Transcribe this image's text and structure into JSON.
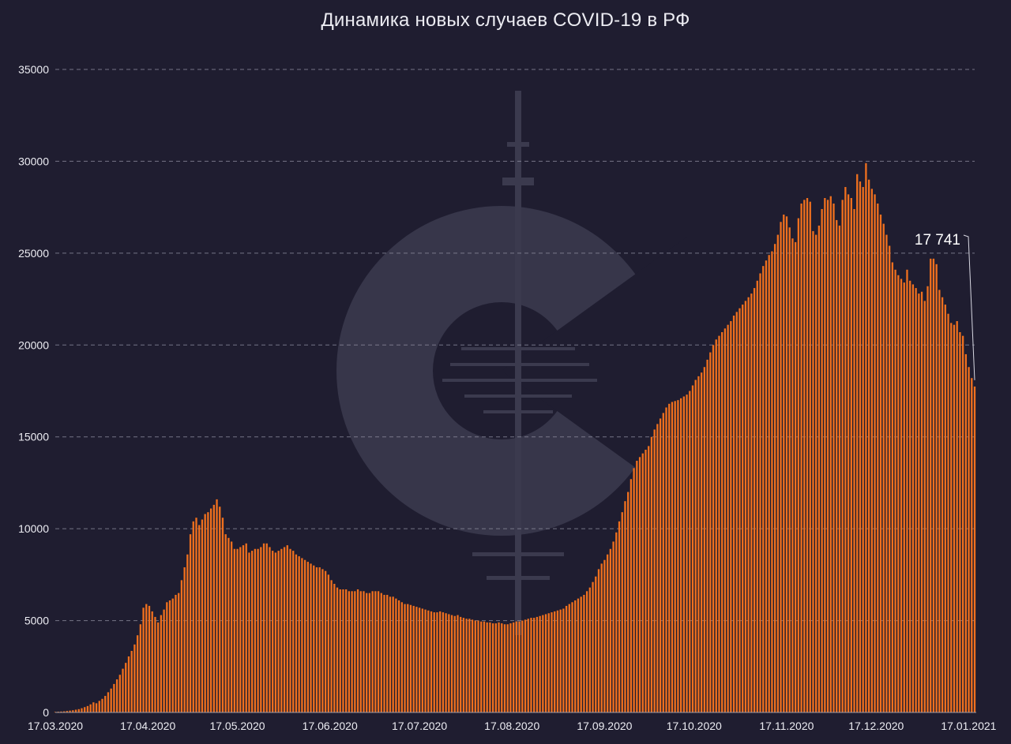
{
  "chart_data": {
    "type": "bar",
    "title": "Динамика новых случаев COVID-19 в РФ",
    "xlabel": "",
    "ylabel": "",
    "x_start": "17.03.2020",
    "x_end": "19.01.2021",
    "xticks": [
      "17.03.2020",
      "17.04.2020",
      "17.05.2020",
      "17.06.2020",
      "17.07.2020",
      "17.08.2020",
      "17.09.2020",
      "17.10.2020",
      "17.11.2020",
      "17.12.2020",
      "17.01.2021"
    ],
    "ylim": [
      0,
      35000
    ],
    "yticks": [
      0,
      5000,
      10000,
      15000,
      20000,
      25000,
      30000,
      35000
    ],
    "grid": "horizontal dashed",
    "bar_color": "#f0701e",
    "values": [
      30,
      40,
      50,
      60,
      80,
      100,
      120,
      150,
      180,
      230,
      290,
      350,
      440,
      550,
      500,
      630,
      740,
      900,
      1100,
      1300,
      1550,
      1800,
      2050,
      2380,
      2700,
      3050,
      3350,
      3700,
      4200,
      4800,
      5700,
      5900,
      5800,
      5500,
      5200,
      4900,
      5300,
      5600,
      6000,
      6100,
      6200,
      6400,
      6500,
      7200,
      7900,
      8600,
      9700,
      10400,
      10600,
      10200,
      10500,
      10800,
      10900,
      11100,
      11300,
      11600,
      11200,
      10600,
      9700,
      9500,
      9300,
      8900,
      8900,
      9000,
      9100,
      9200,
      8700,
      8800,
      8900,
      8900,
      9000,
      9200,
      9200,
      9000,
      8800,
      8700,
      8800,
      8900,
      9000,
      9100,
      8900,
      8800,
      8600,
      8500,
      8400,
      8300,
      8200,
      8100,
      8000,
      7900,
      7900,
      7800,
      7700,
      7500,
      7200,
      7000,
      6800,
      6700,
      6700,
      6700,
      6600,
      6600,
      6600,
      6700,
      6600,
      6600,
      6500,
      6500,
      6600,
      6600,
      6600,
      6500,
      6400,
      6400,
      6300,
      6300,
      6200,
      6100,
      6000,
      5900,
      5900,
      5850,
      5800,
      5750,
      5700,
      5650,
      5600,
      5550,
      5500,
      5450,
      5450,
      5500,
      5450,
      5400,
      5350,
      5300,
      5250,
      5300,
      5200,
      5150,
      5100,
      5100,
      5050,
      5000,
      5000,
      4950,
      4950,
      4900,
      4900,
      4850,
      4850,
      4900,
      4850,
      4800,
      4800,
      4850,
      4900,
      4950,
      4950,
      5000,
      5050,
      5100,
      5150,
      5150,
      5200,
      5250,
      5300,
      5350,
      5400,
      5450,
      5500,
      5550,
      5600,
      5650,
      5800,
      5900,
      6000,
      6100,
      6200,
      6300,
      6400,
      6600,
      6800,
      7100,
      7400,
      7800,
      8100,
      8300,
      8600,
      8900,
      9300,
      9800,
      10400,
      10900,
      11500,
      12000,
      12700,
      13300,
      13700,
      13900,
      14100,
      14300,
      14500,
      15000,
      15400,
      15700,
      16000,
      16300,
      16600,
      16800,
      16900,
      16950,
      17000,
      17100,
      17200,
      17300,
      17500,
      17800,
      18100,
      18300,
      18500,
      18800,
      19200,
      19600,
      20000,
      20300,
      20500,
      20700,
      20900,
      21100,
      21300,
      21600,
      21800,
      22000,
      22200,
      22400,
      22600,
      22800,
      23100,
      23500,
      23900,
      24300,
      24600,
      24900,
      25100,
      25500,
      26000,
      26700,
      27100,
      27000,
      26400,
      25800,
      25600,
      26900,
      27700,
      27900,
      28000,
      27800,
      26200,
      26000,
      26500,
      27400,
      28000,
      27900,
      28100,
      27700,
      26800,
      26500,
      27900,
      28600,
      28200,
      28000,
      27400,
      29300,
      28900,
      28600,
      29900,
      29000,
      28500,
      28200,
      27700,
      27100,
      26600,
      26000,
      25400,
      24500,
      24100,
      23800,
      23600,
      23400,
      24100,
      23500,
      23300,
      23100,
      22800,
      22900,
      22400,
      23200,
      24700,
      24700,
      24400,
      23000,
      22600,
      22200,
      21700,
      21200,
      21100,
      21300,
      20700,
      20500,
      19500,
      18800,
      18200,
      17741
    ],
    "annotations": [
      {
        "label": "17 741",
        "date": "19.01.2021",
        "value": 17741
      }
    ]
  }
}
